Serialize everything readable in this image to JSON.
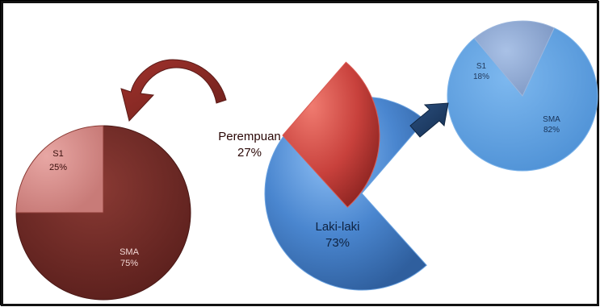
{
  "chart_data": [
    {
      "type": "pie",
      "title": "",
      "slices": [
        {
          "label": "Laki-laki",
          "value": 73,
          "value_label": "73%",
          "color": "#4a86cf"
        },
        {
          "label": "Perempuan",
          "value": 27,
          "value_label": "27%",
          "color": "#c8413c"
        }
      ]
    },
    {
      "type": "pie",
      "title": "",
      "slices": [
        {
          "label": "SMA",
          "value": 75,
          "value_label": "75%",
          "color": "#6f2a26"
        },
        {
          "label": "S1",
          "value": 25,
          "value_label": "25%",
          "color": "#d88c8a"
        }
      ]
    },
    {
      "type": "pie",
      "title": "",
      "slices": [
        {
          "label": "SMA",
          "value": 82,
          "value_label": "82%",
          "color": "#5a9fe0"
        },
        {
          "label": "S1",
          "value": 18,
          "value_label": "18%",
          "color": "#8eaad6"
        }
      ]
    }
  ]
}
